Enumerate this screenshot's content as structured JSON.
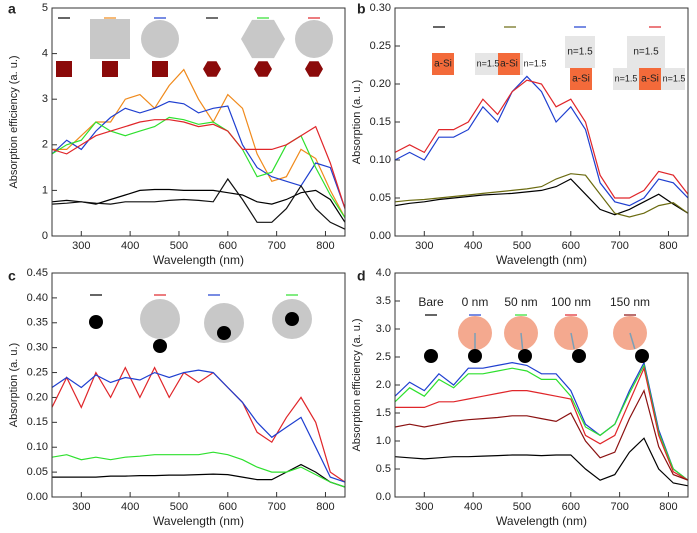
{
  "chart_data": [
    {
      "type": "line",
      "label": "a",
      "ylabel": "Absorption efficiency (a. u.)",
      "xlabel": "Wavelength (nm)",
      "x": [
        240,
        270,
        300,
        330,
        360,
        390,
        420,
        450,
        480,
        510,
        540,
        570,
        600,
        630,
        660,
        690,
        720,
        750,
        780,
        810,
        840
      ],
      "xlim": [
        240,
        840
      ],
      "xticks": [
        300,
        400,
        500,
        600,
        700,
        800
      ],
      "ylim": [
        0,
        5
      ],
      "yticks": [
        0,
        1,
        2,
        3,
        4,
        5
      ],
      "series": [
        {
          "color": "#000000",
          "values": [
            0.75,
            0.78,
            0.75,
            0.7,
            0.8,
            0.9,
            1.0,
            1.02,
            1.02,
            1.0,
            1.0,
            1.0,
            0.95,
            0.9,
            0.75,
            0.7,
            0.8,
            0.95,
            1.0,
            0.8,
            0.3
          ]
        },
        {
          "color": "#f08a1c",
          "values": [
            1.9,
            1.9,
            2.2,
            2.5,
            2.5,
            3.0,
            3.1,
            2.8,
            3.3,
            3.65,
            3.0,
            2.5,
            3.1,
            2.8,
            1.8,
            1.2,
            1.3,
            1.9,
            1.7,
            1.0,
            0.4
          ]
        },
        {
          "color": "#1f3fd0",
          "values": [
            1.8,
            2.1,
            1.9,
            2.3,
            2.6,
            2.8,
            2.7,
            2.8,
            2.95,
            2.9,
            2.7,
            2.8,
            2.85,
            2.0,
            1.5,
            1.3,
            1.2,
            1.1,
            1.6,
            1.5,
            0.6
          ]
        },
        {
          "color": "#111111",
          "values": [
            0.7,
            0.72,
            0.75,
            0.72,
            0.7,
            0.75,
            0.75,
            0.75,
            0.78,
            0.8,
            0.78,
            0.75,
            1.25,
            0.8,
            0.3,
            0.3,
            0.6,
            1.1,
            0.6,
            0.3,
            0.15
          ]
        },
        {
          "color": "#2ee02e",
          "values": [
            1.8,
            2.0,
            2.1,
            2.5,
            2.3,
            2.2,
            2.3,
            2.4,
            2.6,
            2.55,
            2.45,
            2.5,
            2.3,
            1.9,
            1.3,
            1.4,
            2.0,
            2.2,
            1.5,
            0.9,
            0.4
          ]
        },
        {
          "color": "#e0262a",
          "values": [
            1.9,
            1.8,
            2.0,
            2.2,
            2.3,
            2.4,
            2.5,
            2.55,
            2.55,
            2.5,
            2.4,
            2.45,
            2.3,
            1.9,
            1.9,
            1.9,
            2.0,
            2.2,
            2.4,
            1.6,
            0.6
          ]
        }
      ]
    },
    {
      "type": "line",
      "label": "b",
      "ylabel": "Absorption (a. u.)",
      "xlabel": "Wavelength (nm)",
      "x": [
        240,
        270,
        300,
        330,
        360,
        390,
        420,
        450,
        480,
        510,
        540,
        570,
        600,
        630,
        660,
        690,
        720,
        750,
        780,
        810,
        840
      ],
      "xlim": [
        240,
        840
      ],
      "xticks": [
        300,
        400,
        500,
        600,
        700,
        800
      ],
      "ylim": [
        0,
        0.3
      ],
      "yticks": [
        {
          "value": 0,
          "label": "0.00"
        },
        0.05,
        {
          "value": 0.1,
          "label": "0.10"
        },
        0.15,
        {
          "value": 0.2,
          "label": "0.20"
        },
        0.25,
        {
          "value": 0.3,
          "label": "0.30"
        }
      ],
      "annotations": [
        "a-Si",
        "n=1.5",
        "a-Si",
        "n=1.5",
        "n=1.5",
        "a-Si",
        "n=1.5",
        "n=1.5",
        "a-Si",
        "n=1.5"
      ],
      "series": [
        {
          "color": "#000000",
          "values": [
            0.04,
            0.043,
            0.045,
            0.048,
            0.05,
            0.052,
            0.054,
            0.055,
            0.056,
            0.058,
            0.06,
            0.065,
            0.075,
            0.055,
            0.035,
            0.028,
            0.035,
            0.045,
            0.055,
            0.042,
            0.03
          ]
        },
        {
          "color": "#6b6b10",
          "values": [
            0.045,
            0.047,
            0.048,
            0.05,
            0.052,
            0.054,
            0.056,
            0.058,
            0.06,
            0.062,
            0.065,
            0.075,
            0.082,
            0.08,
            0.055,
            0.03,
            0.025,
            0.03,
            0.04,
            0.044,
            0.03
          ]
        },
        {
          "color": "#1f3fd0",
          "values": [
            0.1,
            0.11,
            0.1,
            0.13,
            0.13,
            0.14,
            0.17,
            0.15,
            0.19,
            0.21,
            0.19,
            0.15,
            0.17,
            0.14,
            0.07,
            0.045,
            0.04,
            0.05,
            0.075,
            0.07,
            0.05
          ]
        },
        {
          "color": "#e0262a",
          "values": [
            0.11,
            0.12,
            0.11,
            0.14,
            0.14,
            0.15,
            0.18,
            0.16,
            0.19,
            0.205,
            0.2,
            0.17,
            0.18,
            0.15,
            0.08,
            0.05,
            0.05,
            0.06,
            0.085,
            0.08,
            0.055
          ]
        }
      ]
    },
    {
      "type": "line",
      "label": "c",
      "ylabel": "Absorption (a. u.)",
      "xlabel": "Wavelength (nm)",
      "x": [
        240,
        270,
        300,
        330,
        360,
        390,
        420,
        450,
        480,
        510,
        540,
        570,
        600,
        630,
        660,
        690,
        720,
        750,
        780,
        810,
        840
      ],
      "xlim": [
        240,
        840
      ],
      "xticks": [
        300,
        400,
        500,
        600,
        700,
        800
      ],
      "ylim": [
        0,
        0.45
      ],
      "yticks": [
        {
          "value": 0,
          "label": "0.00"
        },
        0.05,
        {
          "value": 0.1,
          "label": "0.10"
        },
        0.15,
        {
          "value": 0.2,
          "label": "0.20"
        },
        0.25,
        {
          "value": 0.3,
          "label": "0.30"
        },
        0.35,
        {
          "value": 0.4,
          "label": "0.40"
        },
        0.45
      ],
      "series": [
        {
          "color": "#000000",
          "values": [
            0.04,
            0.04,
            0.04,
            0.04,
            0.042,
            0.042,
            0.043,
            0.043,
            0.044,
            0.044,
            0.045,
            0.046,
            0.045,
            0.04,
            0.035,
            0.035,
            0.05,
            0.065,
            0.05,
            0.03,
            0.02
          ]
        },
        {
          "color": "#e0262a",
          "values": [
            0.18,
            0.24,
            0.18,
            0.25,
            0.2,
            0.26,
            0.2,
            0.26,
            0.2,
            0.25,
            0.23,
            0.25,
            0.22,
            0.19,
            0.13,
            0.11,
            0.16,
            0.2,
            0.15,
            0.05,
            0.03
          ]
        },
        {
          "color": "#1f3fd0",
          "values": [
            0.22,
            0.24,
            0.22,
            0.245,
            0.23,
            0.24,
            0.235,
            0.25,
            0.24,
            0.25,
            0.255,
            0.25,
            0.22,
            0.19,
            0.15,
            0.12,
            0.14,
            0.16,
            0.1,
            0.04,
            0.03
          ]
        },
        {
          "color": "#2ee02e",
          "values": [
            0.08,
            0.085,
            0.075,
            0.08,
            0.075,
            0.08,
            0.082,
            0.085,
            0.085,
            0.085,
            0.085,
            0.09,
            0.085,
            0.075,
            0.06,
            0.05,
            0.05,
            0.06,
            0.045,
            0.03,
            0.02
          ]
        }
      ]
    },
    {
      "type": "line",
      "label": "d",
      "ylabel": "Absorption efficiency (a. u.)",
      "xlabel": "Wavelength (nm)",
      "x": [
        240,
        270,
        300,
        330,
        360,
        390,
        420,
        450,
        480,
        510,
        540,
        570,
        600,
        630,
        660,
        690,
        720,
        750,
        780,
        810,
        840
      ],
      "xlim": [
        240,
        840
      ],
      "xticks": [
        300,
        400,
        500,
        600,
        700,
        800
      ],
      "ylim": [
        0,
        4
      ],
      "yticks": [
        {
          "value": 0,
          "label": "0.0"
        },
        0.5,
        {
          "value": 1,
          "label": "1.0"
        },
        1.5,
        {
          "value": 2,
          "label": "2.0"
        },
        2.5,
        {
          "value": 3,
          "label": "3.0"
        },
        3.5,
        {
          "value": 4,
          "label": "4.0"
        }
      ],
      "series": [
        {
          "name": "Bare",
          "color": "#000000",
          "values": [
            0.72,
            0.7,
            0.68,
            0.7,
            0.72,
            0.72,
            0.73,
            0.74,
            0.75,
            0.75,
            0.74,
            0.75,
            0.75,
            0.5,
            0.3,
            0.4,
            0.8,
            1.05,
            0.5,
            0.25,
            0.2
          ]
        },
        {
          "name": "0 nm",
          "color": "#1f3fd0",
          "values": [
            1.8,
            2.05,
            1.9,
            2.2,
            2.0,
            2.3,
            2.3,
            2.35,
            2.4,
            2.35,
            2.2,
            2.2,
            1.9,
            1.3,
            1.1,
            1.3,
            1.9,
            2.4,
            1.2,
            0.5,
            0.3
          ]
        },
        {
          "name": "50 nm",
          "color": "#2ee02e",
          "values": [
            1.7,
            1.95,
            1.8,
            2.1,
            1.95,
            2.2,
            2.2,
            2.25,
            2.3,
            2.25,
            2.1,
            2.1,
            1.8,
            1.25,
            1.1,
            1.3,
            1.85,
            2.35,
            1.15,
            0.5,
            0.3
          ]
        },
        {
          "name": "100 nm",
          "color": "#e0262a",
          "values": [
            1.6,
            1.6,
            1.6,
            1.7,
            1.7,
            1.75,
            1.8,
            1.85,
            1.9,
            1.9,
            1.85,
            1.8,
            1.75,
            1.1,
            0.95,
            1.1,
            1.7,
            2.3,
            1.1,
            0.45,
            0.3
          ]
        },
        {
          "name": "150 nm",
          "color": "#8b1111",
          "values": [
            1.25,
            1.3,
            1.25,
            1.3,
            1.35,
            1.38,
            1.4,
            1.42,
            1.45,
            1.45,
            1.4,
            1.35,
            1.5,
            1.0,
            0.7,
            0.8,
            1.4,
            1.9,
            0.9,
            0.4,
            0.3
          ]
        }
      ]
    }
  ]
}
